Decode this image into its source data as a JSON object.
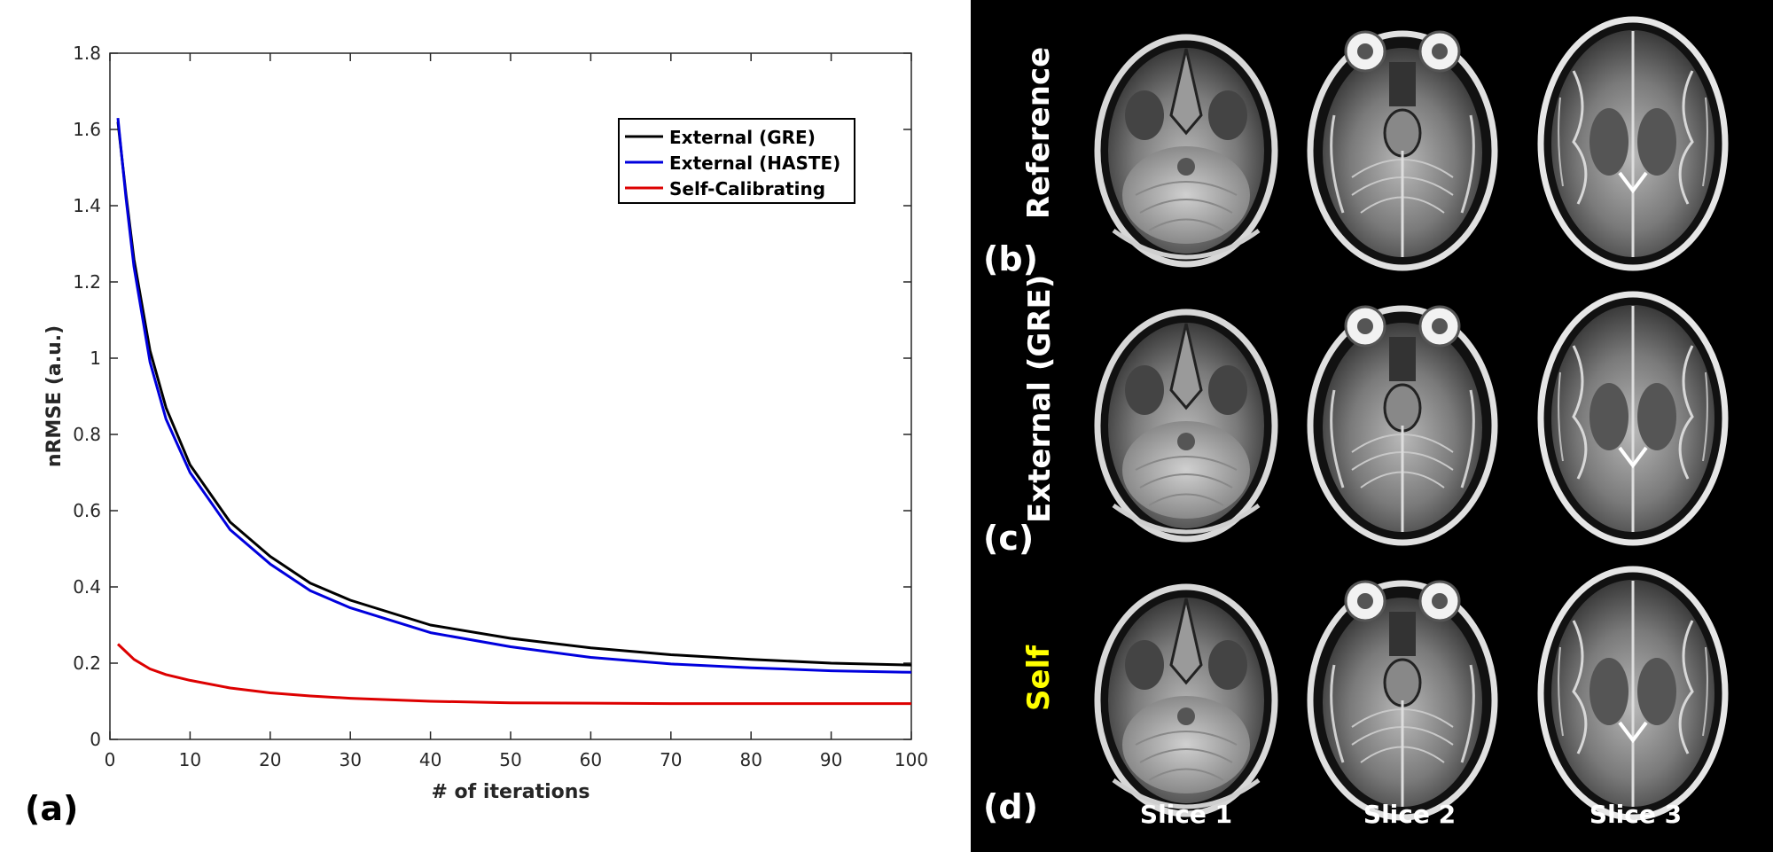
{
  "panels": {
    "a": "(a)",
    "b": "(b)",
    "c": "(c)",
    "d": "(d)"
  },
  "mri": {
    "rows": [
      {
        "label": "Reference",
        "color": "#ffffff"
      },
      {
        "label": "External (GRE)",
        "color": "#ffffff"
      },
      {
        "label": "Self",
        "color": "#ffff00"
      }
    ],
    "columns": [
      "Slice 1",
      "Slice 2",
      "Slice 3"
    ]
  },
  "chart_data": {
    "type": "line",
    "title": "",
    "xlabel": "# of iterations",
    "ylabel": "nRMSE (a.u.)",
    "xlim": [
      0,
      100
    ],
    "ylim": [
      0,
      1.8
    ],
    "xticks": [
      0,
      10,
      20,
      30,
      40,
      50,
      60,
      70,
      80,
      90,
      100
    ],
    "yticks": [
      0,
      0.2,
      0.4,
      0.6,
      0.8,
      1,
      1.2,
      1.4,
      1.6,
      1.8
    ],
    "ytick_labels": [
      "0",
      "0.2",
      "0.4",
      "0.6",
      "0.8",
      "1",
      "1.2",
      "1.4",
      "1.6",
      "1.8"
    ],
    "grid": false,
    "legend_position": "top-right",
    "x": [
      1,
      2,
      3,
      5,
      7,
      10,
      15,
      20,
      25,
      30,
      40,
      50,
      60,
      70,
      80,
      90,
      100
    ],
    "series": [
      {
        "name": "External (GRE)",
        "color": "#000000",
        "values": [
          1.62,
          1.43,
          1.26,
          1.02,
          0.87,
          0.72,
          0.57,
          0.48,
          0.41,
          0.365,
          0.3,
          0.265,
          0.24,
          0.222,
          0.21,
          0.2,
          0.195
        ]
      },
      {
        "name": "External (HASTE)",
        "color": "#0000dd",
        "values": [
          1.63,
          1.42,
          1.24,
          0.99,
          0.84,
          0.7,
          0.55,
          0.46,
          0.39,
          0.345,
          0.28,
          0.243,
          0.215,
          0.198,
          0.188,
          0.18,
          0.176
        ]
      },
      {
        "name": "Self-Calibrating",
        "color": "#dd0000",
        "values": [
          0.25,
          0.23,
          0.21,
          0.185,
          0.17,
          0.155,
          0.135,
          0.122,
          0.114,
          0.108,
          0.1,
          0.096,
          0.095,
          0.094,
          0.094,
          0.094,
          0.094
        ]
      }
    ]
  }
}
